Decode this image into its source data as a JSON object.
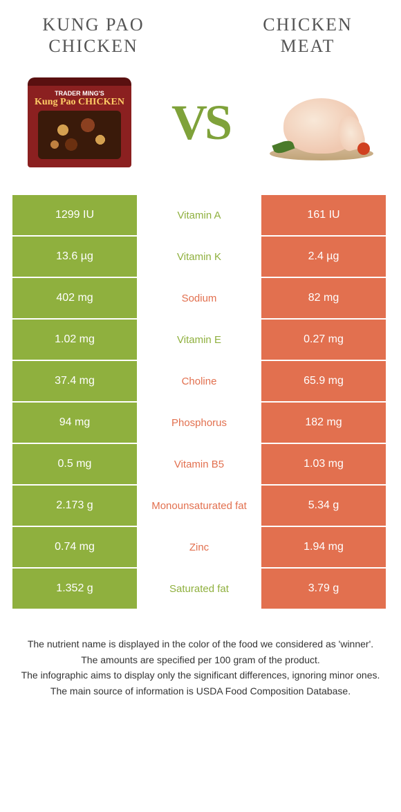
{
  "colors": {
    "green": "#8fb03e",
    "orange": "#e2704f",
    "vs": "#7fa23a",
    "title": "#555555",
    "footnote": "#333333"
  },
  "header": {
    "left_title": "KUNG PAO CHICKEN",
    "right_title": "CHICKEN MEAT",
    "vs": "VS"
  },
  "package": {
    "brand": "TRADER MING'S",
    "name": "Kung Pao CHICKEN"
  },
  "table": {
    "rows": [
      {
        "left": "1299 IU",
        "label": "Vitamin A",
        "right": "161 IU",
        "winner": "left"
      },
      {
        "left": "13.6 µg",
        "label": "Vitamin K",
        "right": "2.4 µg",
        "winner": "left"
      },
      {
        "left": "402 mg",
        "label": "Sodium",
        "right": "82 mg",
        "winner": "right"
      },
      {
        "left": "1.02 mg",
        "label": "Vitamin E",
        "right": "0.27 mg",
        "winner": "left"
      },
      {
        "left": "37.4 mg",
        "label": "Choline",
        "right": "65.9 mg",
        "winner": "right"
      },
      {
        "left": "94 mg",
        "label": "Phosphorus",
        "right": "182 mg",
        "winner": "right"
      },
      {
        "left": "0.5 mg",
        "label": "Vitamin B5",
        "right": "1.03 mg",
        "winner": "right"
      },
      {
        "left": "2.173 g",
        "label": "Monounsaturated fat",
        "right": "5.34 g",
        "winner": "right"
      },
      {
        "left": "0.74 mg",
        "label": "Zinc",
        "right": "1.94 mg",
        "winner": "right"
      },
      {
        "left": "1.352 g",
        "label": "Saturated fat",
        "right": "3.79 g",
        "winner": "left"
      }
    ]
  },
  "footnotes": [
    "The nutrient name is displayed in the color of the food we considered as 'winner'.",
    "The amounts are specified per 100 gram of the product.",
    "The infographic aims to display only the significant differences, ignoring minor ones.",
    "The main source of information is USDA Food Composition Database."
  ]
}
